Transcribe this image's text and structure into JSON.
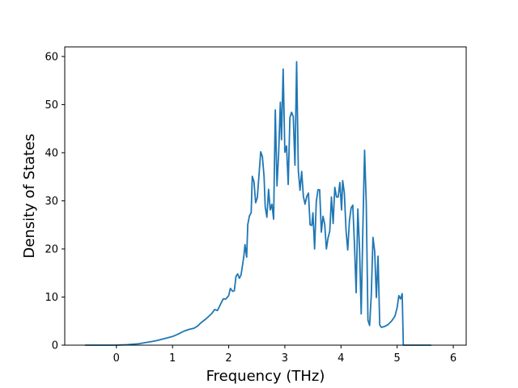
{
  "chart_data": {
    "type": "line",
    "title": "",
    "xlabel": "Frequency (THz)",
    "ylabel": "Density of States",
    "xlim": [
      -0.92,
      6.23
    ],
    "ylim": [
      0,
      62
    ],
    "xticks": [
      0,
      1,
      2,
      3,
      4,
      5,
      6
    ],
    "yticks": [
      0,
      10,
      20,
      30,
      40,
      50,
      60
    ],
    "grid": false,
    "legend": "none",
    "series": [
      {
        "color": "#1f77b4",
        "points": [
          [
            -0.55,
            0
          ],
          [
            -0.3,
            0
          ],
          [
            0,
            0
          ],
          [
            0.1,
            0.05
          ],
          [
            0.2,
            0.1
          ],
          [
            0.3,
            0.2
          ],
          [
            0.4,
            0.3
          ],
          [
            0.5,
            0.5
          ],
          [
            0.6,
            0.7
          ],
          [
            0.7,
            0.9
          ],
          [
            0.8,
            1.2
          ],
          [
            0.9,
            1.5
          ],
          [
            1.0,
            1.8
          ],
          [
            1.1,
            2.3
          ],
          [
            1.2,
            2.9
          ],
          [
            1.3,
            3.3
          ],
          [
            1.38,
            3.5
          ],
          [
            1.45,
            4.0
          ],
          [
            1.5,
            4.6
          ],
          [
            1.6,
            5.5
          ],
          [
            1.7,
            6.6
          ],
          [
            1.75,
            7.4
          ],
          [
            1.8,
            7.2
          ],
          [
            1.85,
            8.4
          ],
          [
            1.9,
            9.6
          ],
          [
            1.95,
            9.6
          ],
          [
            2.0,
            10.3
          ],
          [
            2.03,
            11.8
          ],
          [
            2.07,
            11.2
          ],
          [
            2.1,
            11.3
          ],
          [
            2.13,
            14.3
          ],
          [
            2.16,
            14.8
          ],
          [
            2.19,
            13.9
          ],
          [
            2.22,
            14.6
          ],
          [
            2.25,
            16.9
          ],
          [
            2.27,
            18.5
          ],
          [
            2.29,
            20.9
          ],
          [
            2.32,
            18.3
          ],
          [
            2.34,
            25.1
          ],
          [
            2.37,
            26.9
          ],
          [
            2.4,
            27.5
          ],
          [
            2.42,
            35.1
          ],
          [
            2.45,
            34.0
          ],
          [
            2.48,
            29.6
          ],
          [
            2.51,
            30.7
          ],
          [
            2.54,
            35.4
          ],
          [
            2.57,
            40.2
          ],
          [
            2.6,
            39.2
          ],
          [
            2.63,
            35.0
          ],
          [
            2.65,
            28.8
          ],
          [
            2.68,
            26.6
          ],
          [
            2.71,
            32.4
          ],
          [
            2.74,
            28.1
          ],
          [
            2.77,
            29.3
          ],
          [
            2.8,
            26.2
          ],
          [
            2.83,
            48.9
          ],
          [
            2.86,
            33.1
          ],
          [
            2.89,
            40.0
          ],
          [
            2.92,
            50.5
          ],
          [
            2.94,
            42.7
          ],
          [
            2.97,
            57.4
          ],
          [
            3.0,
            40.1
          ],
          [
            3.03,
            41.4
          ],
          [
            3.06,
            33.4
          ],
          [
            3.09,
            47.3
          ],
          [
            3.12,
            48.4
          ],
          [
            3.15,
            47.5
          ],
          [
            3.18,
            37.4
          ],
          [
            3.21,
            58.9
          ],
          [
            3.24,
            36.3
          ],
          [
            3.27,
            32.2
          ],
          [
            3.3,
            36.1
          ],
          [
            3.33,
            30.9
          ],
          [
            3.36,
            29.3
          ],
          [
            3.39,
            30.9
          ],
          [
            3.42,
            31.6
          ],
          [
            3.45,
            25.0
          ],
          [
            3.48,
            24.9
          ],
          [
            3.5,
            27.5
          ],
          [
            3.53,
            20.0
          ],
          [
            3.56,
            29.8
          ],
          [
            3.59,
            32.3
          ],
          [
            3.62,
            32.3
          ],
          [
            3.65,
            23.5
          ],
          [
            3.68,
            26.8
          ],
          [
            3.71,
            25.1
          ],
          [
            3.74,
            20.0
          ],
          [
            3.77,
            22.3
          ],
          [
            3.8,
            23.7
          ],
          [
            3.83,
            30.8
          ],
          [
            3.86,
            25.3
          ],
          [
            3.89,
            32.8
          ],
          [
            3.92,
            30.8
          ],
          [
            3.95,
            30.8
          ],
          [
            3.98,
            33.8
          ],
          [
            4.01,
            28.1
          ],
          [
            4.03,
            34.2
          ],
          [
            4.06,
            31.6
          ],
          [
            4.09,
            23.8
          ],
          [
            4.12,
            19.8
          ],
          [
            4.15,
            25.8
          ],
          [
            4.18,
            28.5
          ],
          [
            4.21,
            29.1
          ],
          [
            4.24,
            21.0
          ],
          [
            4.27,
            10.9
          ],
          [
            4.3,
            28.3
          ],
          [
            4.33,
            20.1
          ],
          [
            4.36,
            6.5
          ],
          [
            4.39,
            24.6
          ],
          [
            4.42,
            40.5
          ],
          [
            4.45,
            29.4
          ],
          [
            4.48,
            5.2
          ],
          [
            4.51,
            4.1
          ],
          [
            4.54,
            10.5
          ],
          [
            4.57,
            22.4
          ],
          [
            4.6,
            19.5
          ],
          [
            4.63,
            9.9
          ],
          [
            4.66,
            18.5
          ],
          [
            4.69,
            4.2
          ],
          [
            4.72,
            3.7
          ],
          [
            4.78,
            3.9
          ],
          [
            4.84,
            4.3
          ],
          [
            4.9,
            5.0
          ],
          [
            4.96,
            6.0
          ],
          [
            5.0,
            7.8
          ],
          [
            5.03,
            10.3
          ],
          [
            5.06,
            9.6
          ],
          [
            5.09,
            10.7
          ],
          [
            5.11,
            0
          ],
          [
            5.3,
            0
          ],
          [
            5.6,
            0
          ]
        ]
      }
    ]
  }
}
